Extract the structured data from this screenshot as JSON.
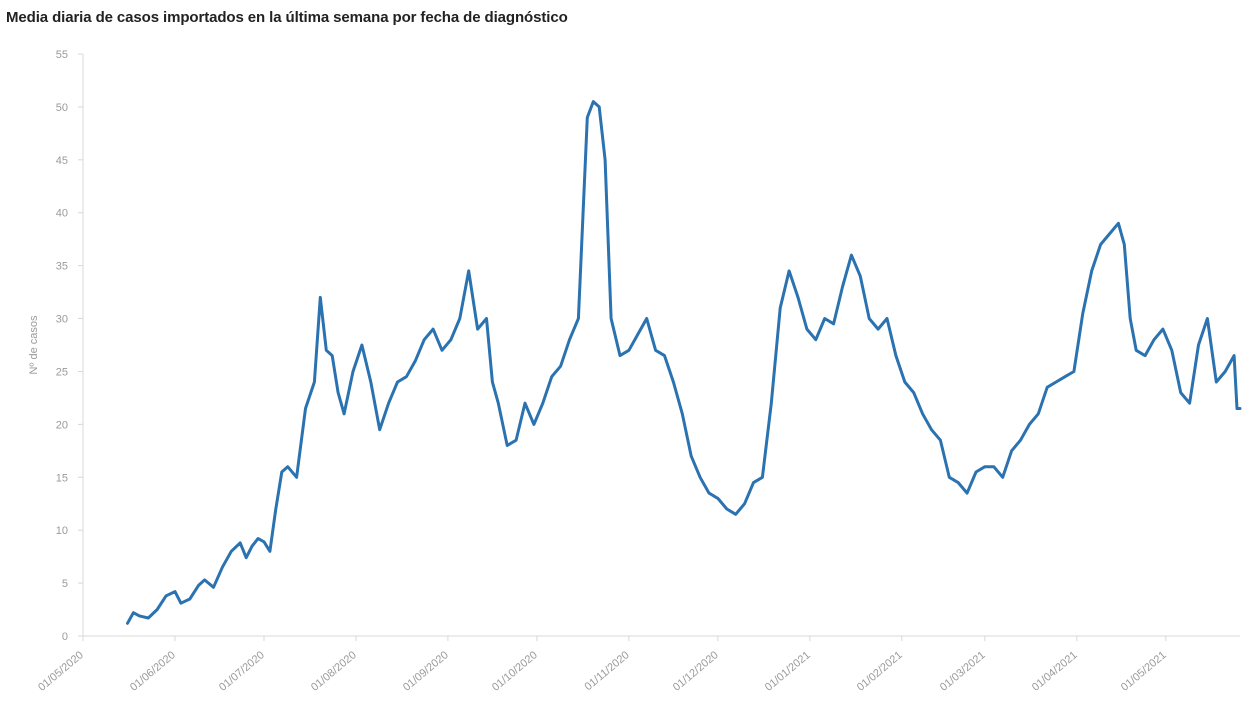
{
  "title": "Media diaria de casos importados en la última semana por fecha de diagnóstico",
  "chart_data": {
    "type": "line",
    "title": "Media diaria de casos importados en la última semana por fecha de diagnóstico",
    "xlabel": "",
    "ylabel": "Nº de casos",
    "xlim": [
      "2020-05-01",
      "2021-05-26"
    ],
    "ylim": [
      0,
      55
    ],
    "yticks": [
      0,
      5,
      10,
      15,
      20,
      25,
      30,
      35,
      40,
      45,
      50,
      55
    ],
    "xticks": [
      "01/05/2020",
      "01/06/2020",
      "01/07/2020",
      "01/08/2020",
      "01/09/2020",
      "01/10/2020",
      "01/11/2020",
      "01/12/2020",
      "01/01/2021",
      "01/02/2021",
      "01/03/2021",
      "01/04/2021",
      "01/05/2021"
    ],
    "color": "#2b72b0",
    "grid": false,
    "series": [
      {
        "x": [
          "2020-05-16",
          "2020-05-18",
          "2020-05-20",
          "2020-05-23",
          "2020-05-26",
          "2020-05-29",
          "2020-06-01",
          "2020-06-03",
          "2020-06-06",
          "2020-06-09",
          "2020-06-11",
          "2020-06-14",
          "2020-06-17",
          "2020-06-20",
          "2020-06-23",
          "2020-06-25",
          "2020-06-27",
          "2020-06-29",
          "2020-07-01",
          "2020-07-03",
          "2020-07-05",
          "2020-07-07",
          "2020-07-09",
          "2020-07-12",
          "2020-07-15",
          "2020-07-18",
          "2020-07-20",
          "2020-07-22",
          "2020-07-24",
          "2020-07-26",
          "2020-07-28",
          "2020-07-31",
          "2020-08-03",
          "2020-08-06",
          "2020-08-09",
          "2020-08-12",
          "2020-08-15",
          "2020-08-18",
          "2020-08-21",
          "2020-08-24",
          "2020-08-27",
          "2020-08-30",
          "2020-09-02",
          "2020-09-05",
          "2020-09-08",
          "2020-09-11",
          "2020-09-14",
          "2020-09-16",
          "2020-09-18",
          "2020-09-21",
          "2020-09-24",
          "2020-09-27",
          "2020-09-30",
          "2020-10-03",
          "2020-10-06",
          "2020-10-09",
          "2020-10-12",
          "2020-10-15",
          "2020-10-18",
          "2020-10-20",
          "2020-10-22",
          "2020-10-24",
          "2020-10-26",
          "2020-10-29",
          "2020-11-01",
          "2020-11-04",
          "2020-11-07",
          "2020-11-10",
          "2020-11-13",
          "2020-11-16",
          "2020-11-19",
          "2020-11-22",
          "2020-11-25",
          "2020-11-28",
          "2020-12-01",
          "2020-12-04",
          "2020-12-07",
          "2020-12-10",
          "2020-12-13",
          "2020-12-16",
          "2020-12-19",
          "2020-12-22",
          "2020-12-25",
          "2020-12-28",
          "2020-12-31",
          "2021-01-03",
          "2021-01-06",
          "2021-01-09",
          "2021-01-12",
          "2021-01-15",
          "2021-01-18",
          "2021-01-21",
          "2021-01-24",
          "2021-01-27",
          "2021-01-30",
          "2021-02-02",
          "2021-02-05",
          "2021-02-08",
          "2021-02-11",
          "2021-02-14",
          "2021-02-17",
          "2021-02-20",
          "2021-02-23",
          "2021-02-26",
          "2021-03-01",
          "2021-03-04",
          "2021-03-07",
          "2021-03-10",
          "2021-03-13",
          "2021-03-16",
          "2021-03-19",
          "2021-03-22",
          "2021-03-25",
          "2021-03-28",
          "2021-03-31",
          "2021-04-03",
          "2021-04-06",
          "2021-04-09",
          "2021-04-12",
          "2021-04-15",
          "2021-04-17",
          "2021-04-19",
          "2021-04-21",
          "2021-04-24",
          "2021-04-27",
          "2021-04-30",
          "2021-05-03",
          "2021-05-06",
          "2021-05-09",
          "2021-05-12",
          "2021-05-15",
          "2021-05-18",
          "2021-05-21",
          "2021-05-24",
          "2021-05-25",
          "2021-05-26"
        ],
        "y": [
          1.2,
          2.2,
          1.9,
          1.7,
          2.5,
          3.8,
          4.2,
          3.1,
          3.5,
          4.8,
          5.3,
          4.6,
          6.5,
          8.0,
          8.8,
          7.4,
          8.5,
          9.2,
          8.9,
          8.0,
          12.0,
          15.5,
          16.0,
          15.0,
          21.5,
          24.0,
          32.0,
          27.0,
          26.5,
          23.0,
          21.0,
          25.0,
          27.5,
          24.0,
          19.5,
          22.0,
          24.0,
          24.5,
          26.0,
          28.0,
          29.0,
          27.0,
          28.0,
          30.0,
          34.5,
          29.0,
          30.0,
          24.0,
          22.0,
          18.0,
          18.5,
          22.0,
          20.0,
          22.0,
          24.5,
          25.5,
          28.0,
          30.0,
          49.0,
          50.5,
          50.0,
          45.0,
          30.0,
          26.5,
          27.0,
          28.5,
          30.0,
          27.0,
          26.5,
          24.0,
          21.0,
          17.0,
          15.0,
          13.5,
          13.0,
          12.0,
          11.5,
          12.5,
          14.5,
          15.0,
          22.0,
          31.0,
          34.5,
          32.0,
          29.0,
          28.0,
          30.0,
          29.5,
          33.0,
          36.0,
          34.0,
          30.0,
          29.0,
          30.0,
          26.5,
          24.0,
          23.0,
          21.0,
          19.5,
          18.5,
          15.0,
          14.5,
          13.5,
          15.5,
          16.0,
          16.0,
          15.0,
          17.5,
          18.5,
          20.0,
          21.0,
          23.5,
          24.0,
          24.5,
          25.0,
          30.5,
          34.5,
          37.0,
          38.0,
          39.0,
          37.0,
          30.0,
          27.0,
          26.5,
          28.0,
          29.0,
          27.0,
          23.0,
          22.0,
          27.5,
          30.0,
          24.0,
          25.0,
          26.5,
          21.5,
          21.5
        ]
      }
    ]
  }
}
